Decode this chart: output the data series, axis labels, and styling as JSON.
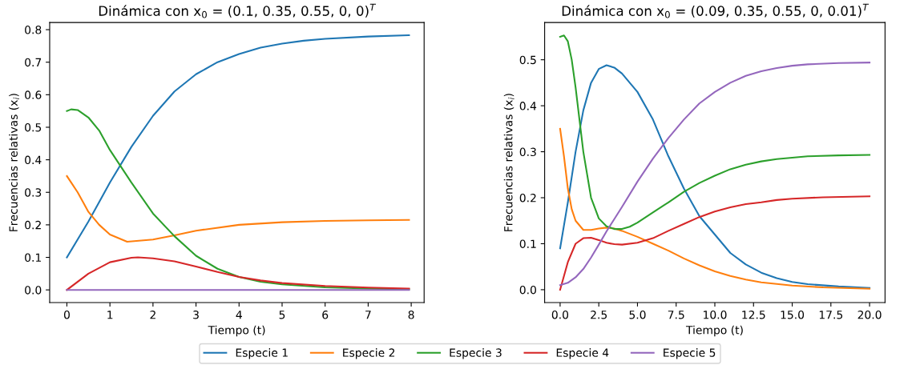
{
  "chart_data": [
    {
      "type": "line",
      "title": "Dinámica con x$_{0}$ = (0.1, 0.35, 0.55, 0, 0)$^{T}$",
      "xlabel": "Tiempo (t)",
      "ylabel": "Frecuencias relativas (x$_{i}$)",
      "xlim": [
        -0.4,
        8.3
      ],
      "ylim": [
        -0.039,
        0.822
      ],
      "xticks": [
        0,
        1,
        2,
        3,
        4,
        5,
        6,
        7,
        8
      ],
      "yticks": [
        {
          "value": 0,
          "label": "0.0"
        },
        0.1,
        0.2,
        0.3,
        0.4,
        0.5,
        0.6,
        0.7,
        0.8
      ],
      "legend": "bottom",
      "grid": false,
      "series": [
        {
          "name": "Especie 1",
          "color": "#1f77b4",
          "x": [
            0,
            0.5,
            1,
            1.5,
            2,
            2.5,
            3,
            3.5,
            4,
            4.5,
            5,
            5.5,
            6,
            7,
            7.95
          ],
          "values": [
            0.1,
            0.21,
            0.33,
            0.44,
            0.535,
            0.61,
            0.663,
            0.7,
            0.725,
            0.745,
            0.757,
            0.766,
            0.772,
            0.779,
            0.783
          ]
        },
        {
          "name": "Especie 2",
          "color": "#ff7f0e",
          "x": [
            0,
            0.25,
            0.5,
            0.75,
            1,
            1.4,
            2,
            2.5,
            3,
            4,
            5,
            6,
            7,
            7.95
          ],
          "values": [
            0.35,
            0.3,
            0.24,
            0.2,
            0.17,
            0.148,
            0.155,
            0.168,
            0.182,
            0.2,
            0.208,
            0.212,
            0.214,
            0.215
          ]
        },
        {
          "name": "Especie 3",
          "color": "#2ca02c",
          "x": [
            0,
            0.1,
            0.25,
            0.5,
            0.75,
            1,
            1.5,
            2,
            2.5,
            3,
            3.5,
            4,
            4.5,
            5,
            6,
            7,
            7.95
          ],
          "values": [
            0.55,
            0.555,
            0.553,
            0.53,
            0.49,
            0.43,
            0.33,
            0.235,
            0.165,
            0.105,
            0.065,
            0.04,
            0.025,
            0.017,
            0.008,
            0.004,
            0.002
          ]
        },
        {
          "name": "Especie 4",
          "color": "#d62728",
          "x": [
            0,
            0.5,
            1,
            1.5,
            1.65,
            2,
            2.5,
            3,
            3.5,
            4,
            4.5,
            5,
            6,
            7,
            7.95
          ],
          "values": [
            0,
            0.05,
            0.085,
            0.099,
            0.1,
            0.097,
            0.088,
            0.072,
            0.055,
            0.04,
            0.029,
            0.021,
            0.012,
            0.007,
            0.004
          ]
        },
        {
          "name": "Especie 5",
          "color": "#9467bd",
          "x": [
            0,
            7.95
          ],
          "values": [
            0,
            0
          ]
        }
      ]
    },
    {
      "type": "line",
      "title": "Dinámica con x$_{0}$ = (0.09, 0.35, 0.55, 0, 0.01)$^{T}$",
      "xlabel": "Tiempo (t)",
      "ylabel": "Frecuencias relativas (x$_{i}$)",
      "xlim": [
        -1,
        21
      ],
      "ylim": [
        -0.028,
        0.581
      ],
      "xticks": [
        {
          "value": 0,
          "label": "0.0"
        },
        2.5,
        {
          "value": 5,
          "label": "5.0"
        },
        7.5,
        {
          "value": 10,
          "label": "10.0"
        },
        12.5,
        {
          "value": 15,
          "label": "15.0"
        },
        17.5,
        {
          "value": 20,
          "label": "20.0"
        }
      ],
      "yticks": [
        {
          "value": 0,
          "label": "0.0"
        },
        0.1,
        0.2,
        0.3,
        0.4,
        0.5
      ],
      "grid": false,
      "series": [
        {
          "color": "#1f77b4",
          "x": [
            0,
            0.5,
            1,
            1.5,
            2,
            2.5,
            3,
            3.5,
            4,
            5,
            6,
            7,
            8,
            9,
            10,
            11,
            12,
            13,
            14,
            15,
            16,
            18,
            20
          ],
          "values": [
            0.09,
            0.19,
            0.3,
            0.39,
            0.45,
            0.48,
            0.488,
            0.483,
            0.47,
            0.43,
            0.37,
            0.29,
            0.22,
            0.16,
            0.12,
            0.08,
            0.055,
            0.037,
            0.025,
            0.017,
            0.012,
            0.007,
            0.004
          ]
        },
        {
          "color": "#ff7f0e",
          "x": [
            0,
            0.25,
            0.5,
            0.75,
            1,
            1.5,
            2,
            2.5,
            3,
            3.5,
            4,
            5,
            6,
            7,
            8,
            9,
            10,
            11,
            12,
            13,
            15,
            17,
            20
          ],
          "values": [
            0.35,
            0.29,
            0.22,
            0.175,
            0.15,
            0.13,
            0.13,
            0.133,
            0.135,
            0.133,
            0.128,
            0.115,
            0.1,
            0.085,
            0.068,
            0.053,
            0.04,
            0.03,
            0.022,
            0.016,
            0.009,
            0.005,
            0.002
          ]
        },
        {
          "color": "#2ca02c",
          "x": [
            0,
            0.25,
            0.5,
            0.75,
            1,
            1.25,
            1.5,
            2,
            2.5,
            3,
            3.5,
            4,
            4.5,
            5,
            6,
            7,
            8,
            9,
            10,
            11,
            12,
            13,
            14,
            15,
            16,
            18,
            20
          ],
          "values": [
            0.55,
            0.553,
            0.54,
            0.5,
            0.44,
            0.37,
            0.3,
            0.2,
            0.155,
            0.138,
            0.132,
            0.132,
            0.137,
            0.146,
            0.168,
            0.19,
            0.213,
            0.232,
            0.248,
            0.262,
            0.272,
            0.279,
            0.284,
            0.287,
            0.29,
            0.292,
            0.293
          ]
        },
        {
          "color": "#d62728",
          "x": [
            0,
            0.25,
            0.5,
            1,
            1.5,
            2,
            2.5,
            3,
            3.5,
            4,
            5,
            6,
            7,
            8,
            9,
            10,
            11,
            12,
            13,
            14,
            15,
            17,
            20
          ],
          "values": [
            0,
            0.03,
            0.06,
            0.1,
            0.112,
            0.113,
            0.108,
            0.102,
            0.099,
            0.098,
            0.102,
            0.112,
            0.128,
            0.143,
            0.158,
            0.17,
            0.179,
            0.186,
            0.19,
            0.195,
            0.198,
            0.201,
            0.203
          ]
        },
        {
          "color": "#9467bd",
          "x": [
            0,
            0.5,
            1,
            1.5,
            2,
            2.5,
            3,
            4,
            5,
            6,
            7,
            8,
            9,
            10,
            11,
            12,
            13,
            14,
            15,
            16,
            18,
            20
          ],
          "values": [
            0.01,
            0.015,
            0.027,
            0.045,
            0.07,
            0.098,
            0.127,
            0.18,
            0.235,
            0.285,
            0.33,
            0.37,
            0.405,
            0.43,
            0.45,
            0.465,
            0.475,
            0.482,
            0.487,
            0.49,
            0.493,
            0.494
          ]
        }
      ]
    }
  ]
}
